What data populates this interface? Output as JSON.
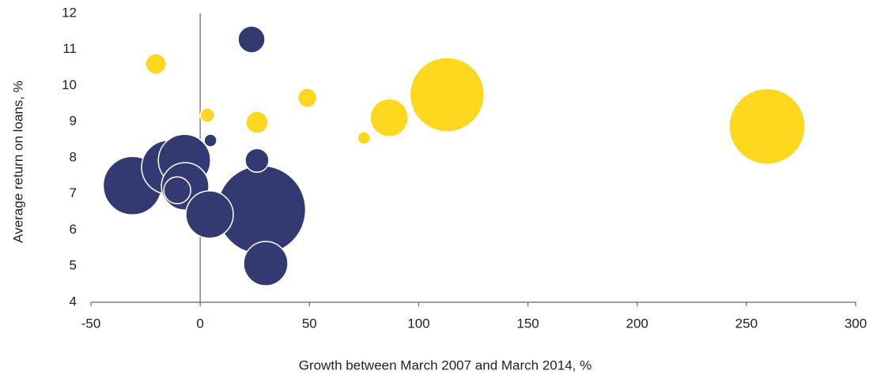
{
  "chart_data": {
    "type": "bubble",
    "x_label": "Growth between March 2007 and March 2014, %",
    "y_label": "Average return on loans, %",
    "xlim": [
      -50,
      300
    ],
    "xticks": [
      -50,
      0,
      50,
      100,
      150,
      200,
      250,
      300
    ],
    "ylim": [
      4,
      12
    ],
    "yticks": [
      4,
      5,
      6,
      7,
      8,
      9,
      10,
      11,
      12
    ],
    "grid": false,
    "series": [
      {
        "color": "#fdd81e",
        "x": [
          259.5,
          113,
          86.5,
          26,
          -20.3,
          49,
          3.3,
          75
        ],
        "values": [
          8.87,
          9.75,
          9.11,
          8.98,
          10.6,
          9.66,
          9.18,
          8.55
        ],
        "sizes": [
          2304,
          2209,
          576,
          196,
          169,
          144,
          81,
          64
        ]
      },
      {
        "color": "#333a72",
        "x": [
          28,
          -31,
          -14.5,
          -7.2,
          -6.9,
          4.3,
          30,
          23.5,
          -10.5,
          26,
          4.7
        ],
        "values": [
          6.56,
          7.23,
          7.74,
          7.93,
          7.21,
          6.43,
          5.07,
          11.28,
          7.1,
          7.93,
          8.48
        ],
        "sizes": [
          3136,
          1369,
          1156,
          1089,
          900,
          900,
          784,
          289,
          289,
          225,
          64
        ]
      }
    ]
  }
}
